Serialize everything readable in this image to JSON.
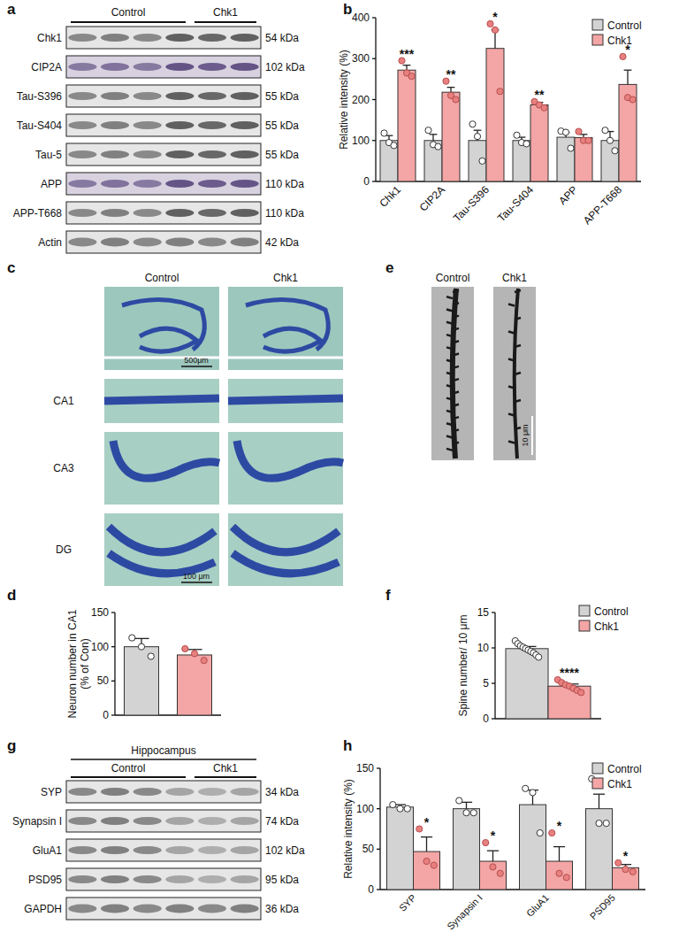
{
  "panel_letters": [
    "a",
    "b",
    "c",
    "d",
    "e",
    "f",
    "g",
    "h"
  ],
  "blots": [
    {
      "header": null,
      "group_labels": [
        "Control",
        "Chk1"
      ],
      "rows": [
        {
          "label": "Chk1",
          "kda": "54 kDa"
        },
        {
          "label": "CIP2A",
          "kda": "102 kDa"
        },
        {
          "label": "Tau-S396",
          "kda": "55 kDa"
        },
        {
          "label": "Tau-S404",
          "kda": "55 kDa"
        },
        {
          "label": "Tau-5",
          "kda": "55 kDa"
        },
        {
          "label": "APP",
          "kda": "110 kDa"
        },
        {
          "label": "APP-T668",
          "kda": "110 kDa"
        },
        {
          "label": "Actin",
          "kda": "42 kDa"
        }
      ]
    },
    {
      "header": "Hippocampus",
      "group_labels": [
        "Control",
        "Chk1"
      ],
      "rows": [
        {
          "label": "SYP",
          "kda": "34 kDa"
        },
        {
          "label": "Synapsin I",
          "kda": "74 kDa"
        },
        {
          "label": "GluA1",
          "kda": "102 kDa"
        },
        {
          "label": "PSD95",
          "kda": "95 kDa"
        },
        {
          "label": "GAPDH",
          "kda": "36 kDa"
        }
      ]
    }
  ],
  "histology": {
    "columns": [
      "Control",
      "Chk1"
    ],
    "rows": [
      "CA1",
      "CA3",
      "DG"
    ],
    "scale_bars": [
      "500μm",
      "100 μm"
    ]
  },
  "spines": {
    "columns": [
      "Control",
      "Chk1"
    ],
    "scale_bar": "10 μm"
  },
  "chart_data": [
    {
      "type": "bar",
      "y_label": "Relative intensity (%)",
      "categories": [
        "Chk1",
        "CIP2A",
        "Tau-S396",
        "Tau-S404",
        "APP",
        "APP-T668"
      ],
      "series": [
        {
          "name": "Control",
          "color": "#d3d3d3",
          "values": [
            100,
            100,
            100,
            100,
            108,
            100
          ],
          "errors": [
            12,
            15,
            25,
            8,
            12,
            22
          ],
          "points": [
            [
              118,
              95,
              88
            ],
            [
              125,
              90,
              85
            ],
            [
              140,
              110,
              50
            ],
            [
              113,
              95,
              92
            ],
            [
              123,
              120,
              81
            ],
            [
              125,
              100,
              75
            ]
          ]
        },
        {
          "name": "Chk1",
          "color": "#f4a5a5",
          "values": [
            272,
            218,
            325,
            187,
            107,
            237
          ],
          "errors": [
            12,
            12,
            45,
            6,
            8,
            35
          ],
          "points": [
            [
              295,
              265,
              257
            ],
            [
              245,
              210,
              200
            ],
            [
              385,
              370,
              220
            ],
            [
              195,
              187,
              180
            ],
            [
              122,
              100,
              100
            ],
            [
              305,
              205,
              200
            ]
          ],
          "significance": [
            "***",
            "**",
            "*",
            "**",
            null,
            "*"
          ]
        }
      ],
      "ylim": [
        0,
        400
      ],
      "yticks": [
        0,
        100,
        200,
        300,
        400
      ],
      "legend": "top-right"
    },
    {
      "type": "bar",
      "y_label": [
        "Neuron number in CA1",
        "(% of Con)"
      ],
      "categories": [
        null,
        null
      ],
      "series": [
        {
          "colors": [
            "#d3d3d3",
            "#f4a5a5"
          ],
          "values": [
            100,
            88
          ],
          "errors": [
            12,
            8
          ],
          "points": [
            [
              113,
              100,
              86
            ],
            [
              97,
              90,
              80
            ]
          ]
        }
      ],
      "ylim": [
        0,
        150
      ],
      "yticks": [
        0,
        50,
        100,
        150
      ]
    },
    {
      "type": "bar",
      "y_label": "Spine number/ 10 μm",
      "categories": [
        null
      ],
      "series": [
        {
          "name": "Control",
          "color": "#d3d3d3",
          "values": [
            9.9
          ],
          "errors": [
            0.3
          ],
          "points": [
            [
              11.0,
              10.6,
              10.3,
              10.1,
              9.9,
              9.7,
              9.5,
              9.3,
              9.0,
              8.7
            ]
          ]
        },
        {
          "name": "Chk1",
          "color": "#f4a5a5",
          "values": [
            4.6
          ],
          "errors": [
            0.3
          ],
          "points": [
            [
              5.5,
              5.1,
              4.8,
              4.6,
              4.3,
              4.0,
              3.7
            ]
          ],
          "significance": [
            "****"
          ]
        }
      ],
      "ylim": [
        0,
        15
      ],
      "yticks": [
        0,
        5,
        10,
        15
      ],
      "legend": "top-right"
    },
    {
      "type": "bar",
      "y_label": "Relative intensity (%)",
      "categories": [
        "SYP",
        "Synapsin I",
        "GluA1",
        "PSD95"
      ],
      "series": [
        {
          "name": "Control",
          "color": "#d3d3d3",
          "values": [
            102,
            100,
            105,
            100
          ],
          "errors": [
            3,
            8,
            18,
            18
          ],
          "points": [
            [
              105,
              100,
              100
            ],
            [
              110,
              95,
              95
            ],
            [
              125,
              120,
              70
            ],
            [
              137,
              82,
              82
            ]
          ]
        },
        {
          "name": "Chk1",
          "color": "#f4a5a5",
          "values": [
            47,
            35,
            35,
            27
          ],
          "errors": [
            18,
            13,
            18,
            4
          ],
          "points": [
            [
              75,
              35,
              30
            ],
            [
              58,
              28,
              20
            ],
            [
              70,
              20,
              15
            ],
            [
              33,
              25,
              22
            ]
          ],
          "significance": [
            "*",
            "*",
            "*",
            "*"
          ]
        }
      ],
      "ylim": [
        0,
        150
      ],
      "yticks": [
        0,
        50,
        100,
        150
      ],
      "legend": "top-right"
    }
  ]
}
